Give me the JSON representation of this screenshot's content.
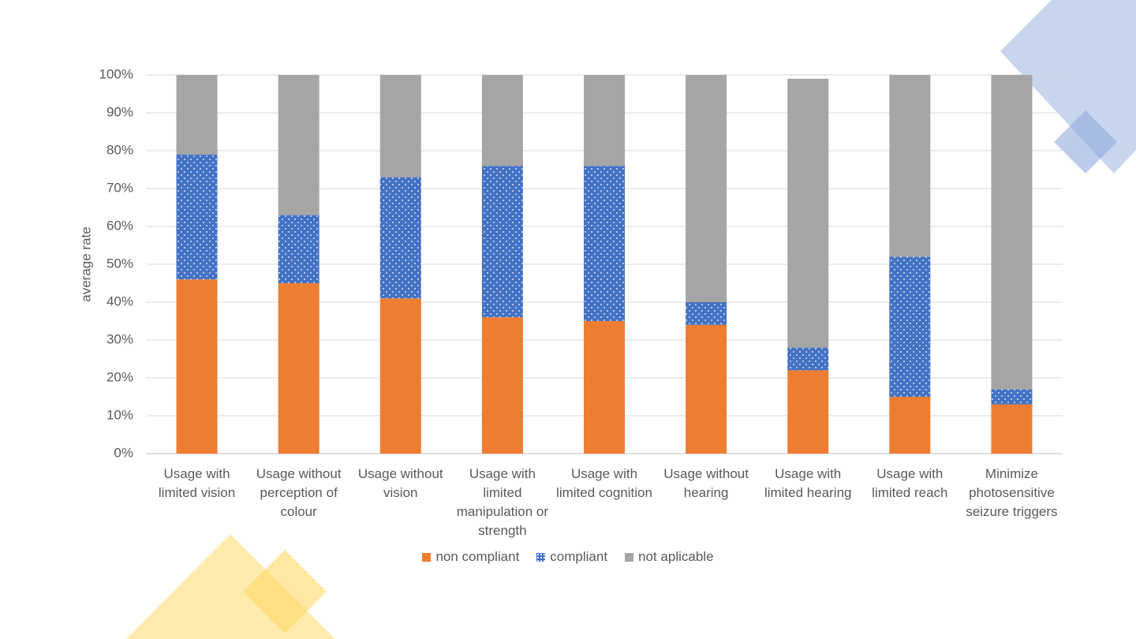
{
  "chart_data": {
    "type": "stacked_bar",
    "y_label": "average rate",
    "categories": [
      "Usage with limited vision",
      "Usage without perception of colour",
      "Usage without vision",
      "Usage with limited manipulation or strength",
      "Usage with limited cognition",
      "Usage without hearing",
      "Usage with limited hearing",
      "Usage with limited reach",
      "Minimize photosensitive seizure triggers"
    ],
    "series": [
      {
        "name": "non compliant",
        "color": "#ed7d31",
        "values": [
          46,
          45,
          41,
          36,
          35,
          34,
          22,
          15,
          13
        ]
      },
      {
        "name": "compliant",
        "color": "#4472c4",
        "values": [
          33,
          18,
          32,
          40,
          41,
          6,
          6,
          37,
          4
        ]
      },
      {
        "name": "not aplicable",
        "color": "#a5a5a5",
        "values": [
          21,
          37,
          27,
          24,
          24,
          60,
          71,
          48,
          83
        ]
      }
    ],
    "ylim": [
      0,
      100
    ],
    "yticks": [
      {
        "value": 0,
        "label": "0%"
      },
      {
        "value": 10,
        "label": "10%"
      },
      {
        "value": 20,
        "label": "20%"
      },
      {
        "value": 30,
        "label": "30%"
      },
      {
        "value": 40,
        "label": "40%"
      },
      {
        "value": 50,
        "label": "50%"
      },
      {
        "value": 60,
        "label": "60%"
      },
      {
        "value": 70,
        "label": "70%"
      },
      {
        "value": 80,
        "label": "80%"
      },
      {
        "value": 90,
        "label": "90%"
      },
      {
        "value": 100,
        "label": "100%"
      }
    ],
    "grid": true,
    "legend": "bottom"
  }
}
